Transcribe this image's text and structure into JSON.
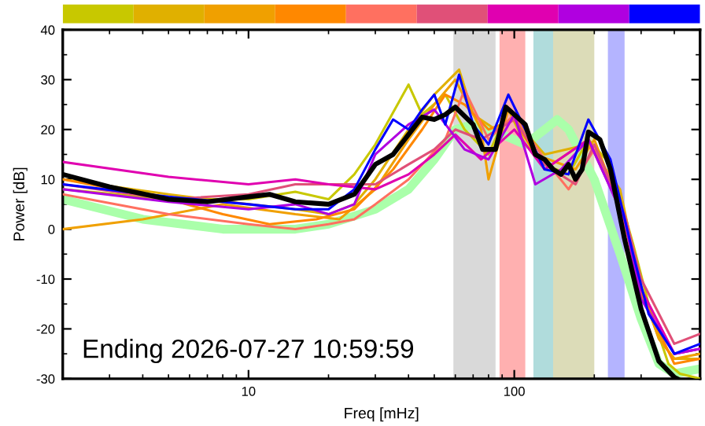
{
  "chart_data": {
    "type": "line",
    "xlabel": "Freq [mHz]",
    "ylabel": "Power [dB]",
    "log": "x",
    "xlim": [
      2,
      500
    ],
    "ylim": [
      -30,
      40
    ],
    "xticks": [
      10,
      100
    ],
    "yticks": [
      -30,
      -20,
      -10,
      0,
      10,
      20,
      30,
      40
    ],
    "grid": false,
    "legend": false,
    "marker": "none",
    "line_style": "solid",
    "annotations": [
      "Ending 2026-07-27 10:59:59"
    ],
    "bands": [
      {
        "axis": "x",
        "from": 59,
        "to": 85,
        "color": "#d9d9d9"
      },
      {
        "axis": "x",
        "from": 88,
        "to": 110,
        "color": "#ffb0b0"
      },
      {
        "axis": "x",
        "from": 118,
        "to": 140,
        "color": "#b0dcdc"
      },
      {
        "axis": "x",
        "from": 140,
        "to": 200,
        "color": "#dcdcb8"
      },
      {
        "axis": "x",
        "from": 225,
        "to": 260,
        "color": "#b4b4ff"
      }
    ],
    "series": [
      {
        "color": "#aaffaa",
        "x": [
          2,
          4,
          8,
          15,
          20,
          30,
          40,
          50,
          60,
          70,
          90,
          110,
          130,
          145,
          160,
          200,
          250,
          300,
          350,
          400,
          500
        ],
        "values": [
          6,
          2,
          0,
          0,
          1,
          4,
          8,
          14,
          20,
          21,
          19,
          17,
          20,
          22,
          20,
          10,
          -5,
          -18,
          -27,
          -29,
          -28
        ]
      },
      {
        "color": "#c8c800",
        "x": [
          2,
          5,
          10,
          15,
          20,
          25,
          30,
          40,
          45,
          55,
          65,
          80,
          95,
          110,
          130,
          160,
          190,
          230,
          280,
          320,
          380,
          420,
          500
        ],
        "values": [
          8,
          6,
          6,
          7.5,
          6,
          11,
          17,
          29,
          23,
          27,
          20,
          15,
          24,
          17,
          13,
          11,
          18,
          13,
          -3,
          -15,
          -27,
          -29,
          -30
        ]
      },
      {
        "color": "#e0b000",
        "x": [
          2,
          5,
          10,
          15,
          20,
          25,
          30,
          40,
          50,
          62,
          70,
          85,
          100,
          130,
          190,
          250,
          300,
          350,
          400,
          500
        ],
        "values": [
          10,
          7,
          5,
          4,
          3,
          5,
          10,
          20,
          27,
          32,
          23,
          20,
          22,
          15,
          17,
          8,
          -12,
          -22,
          -26,
          -26
        ]
      },
      {
        "color": "#f0a000",
        "x": [
          2,
          4,
          8,
          15,
          22,
          30,
          40,
          50,
          60,
          75,
          80,
          95,
          120,
          170,
          200,
          260,
          300,
          350,
          400,
          500
        ],
        "values": [
          0,
          2,
          5,
          3,
          2,
          8,
          18,
          25,
          30,
          20,
          10,
          24,
          15,
          12,
          18,
          2,
          -12,
          -22,
          -26,
          -25
        ]
      },
      {
        "color": "#ff8800",
        "x": [
          2,
          5,
          8,
          12,
          18,
          25,
          35,
          45,
          55,
          65,
          80,
          100,
          130,
          190,
          250,
          300,
          400,
          500
        ],
        "values": [
          10,
          6,
          3,
          1,
          2,
          4,
          12,
          20,
          27,
          25,
          20,
          22,
          12,
          18,
          5,
          -13,
          -27,
          -26
        ]
      },
      {
        "color": "#ff7060",
        "x": [
          2,
          5,
          10,
          15,
          20,
          25,
          30,
          40,
          55,
          65,
          80,
          100,
          130,
          160,
          200,
          250,
          300,
          400,
          500
        ],
        "values": [
          7,
          3,
          1,
          0,
          1,
          2,
          5,
          10,
          18,
          28,
          18,
          23,
          14,
          8,
          16,
          5,
          -12,
          -25,
          -24
        ]
      },
      {
        "color": "#e05078",
        "x": [
          2,
          5,
          10,
          15,
          20,
          30,
          40,
          50,
          60,
          75,
          100,
          130,
          170,
          200,
          260,
          300,
          400,
          500
        ],
        "values": [
          9,
          6,
          7,
          9,
          9,
          9,
          13,
          16,
          20,
          18,
          22,
          13,
          9,
          17,
          3,
          -10,
          -23,
          -21
        ]
      },
      {
        "color": "#e000b0",
        "x": [
          2,
          5,
          10,
          15,
          20,
          30,
          40,
          50,
          60,
          75,
          100,
          130,
          190,
          260,
          300,
          400,
          500
        ],
        "values": [
          13.5,
          10.5,
          9,
          10,
          9,
          8,
          11,
          15,
          19,
          14,
          20,
          12,
          18,
          2,
          -12,
          -25,
          -24
        ]
      },
      {
        "color": "#b000e0",
        "x": [
          2,
          5,
          10,
          15,
          20,
          25,
          30,
          40,
          50,
          65,
          80,
          100,
          120,
          150,
          190,
          260,
          300,
          400,
          500
        ],
        "values": [
          8,
          5.5,
          4,
          5,
          3,
          5,
          15,
          21,
          24,
          16,
          14,
          23,
          9,
          12,
          18,
          2,
          -14,
          -25,
          -24
        ]
      },
      {
        "color": "#0000ff",
        "x": [
          2,
          5,
          10,
          15,
          20,
          25,
          30,
          35,
          40,
          45,
          50,
          55,
          62,
          70,
          80,
          95,
          110,
          130,
          160,
          190,
          230,
          280,
          320,
          400,
          500
        ],
        "values": [
          9,
          6.5,
          5,
          4,
          4,
          8,
          16,
          22,
          20,
          24,
          27,
          21,
          31,
          21,
          17,
          27,
          20,
          12,
          11,
          22,
          14,
          -5,
          -17,
          -25,
          -23
        ]
      },
      {
        "color": "#000000",
        "x": [
          2,
          3,
          5,
          7,
          10,
          12,
          15,
          20,
          25,
          30,
          35,
          40,
          45,
          50,
          55,
          60,
          70,
          76,
          85,
          93,
          100,
          110,
          120,
          130,
          140,
          150,
          160,
          170,
          180,
          190,
          210,
          230,
          260,
          300,
          350,
          400,
          410
        ],
        "values": [
          11,
          8.5,
          6,
          5.5,
          6.5,
          7,
          5.5,
          5,
          7,
          13,
          15,
          19,
          22.5,
          22,
          23,
          24.5,
          21,
          16,
          16,
          24.5,
          23,
          21,
          15,
          14,
          12,
          11,
          13,
          10,
          12,
          19.5,
          18,
          12,
          -2,
          -16,
          -26.5,
          -29.7,
          -30
        ]
      }
    ]
  }
}
